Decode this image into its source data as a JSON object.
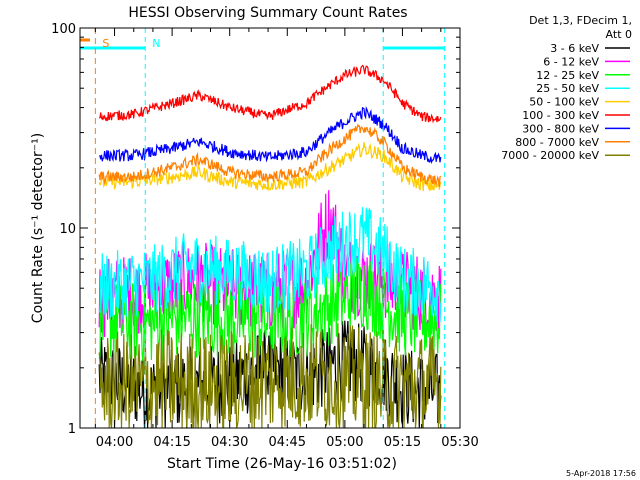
{
  "chart_data": {
    "type": "line",
    "title": "HESSI Observing Summary Count Rates",
    "xlabel": "Start Time (26-May-16 03:51:02)",
    "ylabel": "Count Rate (s⁻¹ detector⁻¹)",
    "y_scale": "log",
    "ylim": [
      1,
      100
    ],
    "y_tick_labels": [
      "1",
      "10",
      "100"
    ],
    "xlim": [
      "03:51",
      "05:30"
    ],
    "x_tick_labels": [
      "04:00",
      "04:15",
      "04:30",
      "04:45",
      "05:00",
      "05:15",
      "05:30"
    ],
    "legend_header": [
      "Det 1,3, FDecim 1,",
      "Att 0"
    ],
    "legend_position": "right, outside plot",
    "series": [
      {
        "name": "3 - 6 keV",
        "color": "#000000",
        "x": [
          "03:56",
          "04:10",
          "04:20",
          "04:30",
          "04:40",
          "04:50",
          "05:00",
          "05:10",
          "05:15",
          "05:25"
        ],
        "y": [
          1.8,
          1.5,
          1.6,
          1.7,
          2.0,
          1.8,
          2.2,
          1.9,
          1.6,
          1.5
        ]
      },
      {
        "name": "6 - 12 keV",
        "color": "#ff00ff",
        "x": [
          "03:56",
          "04:10",
          "04:20",
          "04:30",
          "04:40",
          "04:50",
          "04:56",
          "05:00",
          "05:10",
          "05:15",
          "05:25"
        ],
        "y": [
          4.5,
          4.8,
          5.5,
          5.0,
          4.8,
          5.2,
          11.0,
          6.0,
          5.5,
          5.0,
          4.5
        ]
      },
      {
        "name": "12 - 25 keV",
        "color": "#00ff00",
        "x": [
          "03:56",
          "04:10",
          "04:20",
          "04:30",
          "04:40",
          "04:50",
          "05:00",
          "05:05",
          "05:10",
          "05:15",
          "05:25"
        ],
        "y": [
          3.5,
          3.3,
          3.6,
          3.5,
          3.4,
          3.6,
          4.5,
          5.0,
          4.2,
          3.6,
          3.4
        ]
      },
      {
        "name": "25 - 50 keV",
        "color": "#00ffff",
        "x": [
          "03:56",
          "04:10",
          "04:20",
          "04:30",
          "04:40",
          "04:50",
          "05:00",
          "05:05",
          "05:10",
          "05:15",
          "05:25"
        ],
        "y": [
          5.0,
          5.5,
          6.5,
          6.0,
          5.5,
          6.0,
          8.5,
          9.0,
          7.5,
          5.5,
          5.0
        ]
      },
      {
        "name": "50 - 100 keV",
        "color": "#ffcc00",
        "x": [
          "03:56",
          "04:05",
          "04:15",
          "04:22",
          "04:30",
          "04:40",
          "04:50",
          "05:00",
          "05:05",
          "05:10",
          "05:15",
          "05:20",
          "05:25"
        ],
        "y": [
          17,
          17,
          18,
          19,
          17,
          16.5,
          17,
          22,
          25,
          23,
          18,
          16.5,
          16
        ]
      },
      {
        "name": "100 - 300 keV",
        "color": "#ff0000",
        "x": [
          "03:56",
          "04:05",
          "04:15",
          "04:22",
          "04:30",
          "04:40",
          "04:50",
          "05:00",
          "05:05",
          "05:10",
          "05:15",
          "05:20",
          "05:25"
        ],
        "y": [
          36,
          37,
          42,
          46,
          40,
          36,
          42,
          58,
          62,
          55,
          42,
          36,
          35
        ]
      },
      {
        "name": "300 - 800 keV",
        "color": "#0000ff",
        "x": [
          "03:56",
          "04:05",
          "04:15",
          "04:22",
          "04:30",
          "04:40",
          "04:50",
          "05:00",
          "05:05",
          "05:10",
          "05:15",
          "05:20",
          "05:25"
        ],
        "y": [
          23,
          23,
          25,
          27,
          24,
          22.5,
          24,
          34,
          38,
          33,
          25,
          23,
          22
        ]
      },
      {
        "name": "800 - 7000 keV",
        "color": "#ff8000",
        "x": [
          "03:56",
          "04:05",
          "04:15",
          "04:22",
          "04:30",
          "04:40",
          "04:50",
          "05:00",
          "05:05",
          "05:10",
          "05:15",
          "05:20",
          "05:25"
        ],
        "y": [
          18,
          18,
          20,
          22,
          19,
          18,
          19,
          28,
          32,
          27,
          20,
          18,
          17
        ]
      },
      {
        "name": "7000 - 20000 keV",
        "color": "#808000",
        "x": [
          "03:56",
          "04:05",
          "04:15",
          "04:25",
          "04:35",
          "04:45",
          "04:55",
          "05:05",
          "05:15",
          "05:25"
        ],
        "y": [
          1.6,
          1.6,
          1.7,
          1.6,
          1.7,
          1.8,
          1.8,
          1.7,
          1.6,
          1.6
        ]
      }
    ],
    "annotations": [
      {
        "text": "S",
        "color": "#ff8000",
        "x": "03:55"
      },
      {
        "text": "N",
        "color": "#00ffff",
        "x": "04:08"
      }
    ],
    "markers": {
      "attenuator_color": "#ff8000",
      "attenuator_x": [
        "03:55"
      ],
      "night_color": "#00ffff",
      "night_spans": [
        [
          "03:51",
          "04:08"
        ],
        [
          "05:10",
          "05:26"
        ]
      ]
    },
    "grid": false
  },
  "footer": {
    "timestamp": "5-Apr-2018 17:56"
  }
}
